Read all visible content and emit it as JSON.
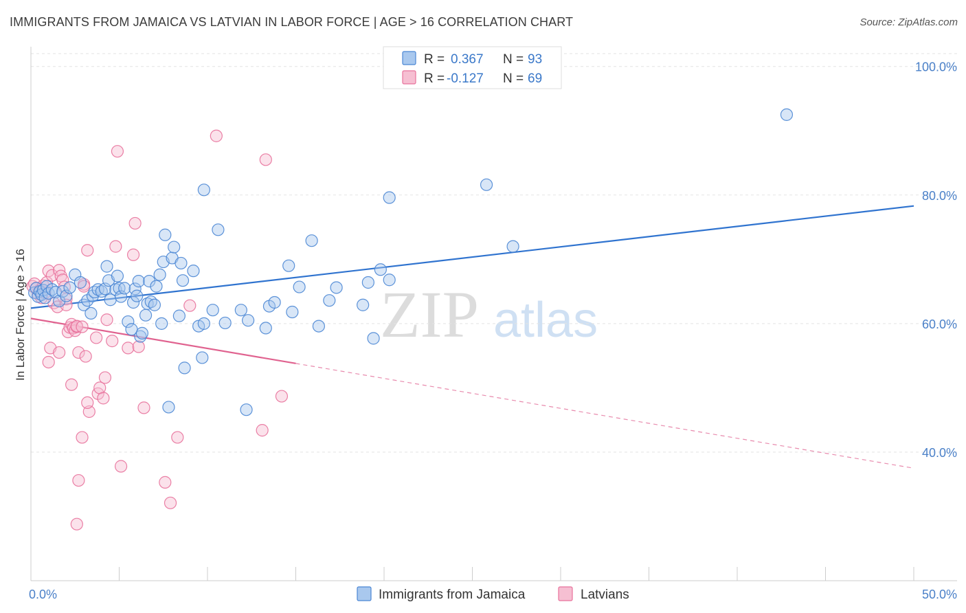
{
  "header": {
    "title": "IMMIGRANTS FROM JAMAICA VS LATVIAN IN LABOR FORCE | AGE > 16 CORRELATION CHART",
    "source": "Source: ZipAtlas.com"
  },
  "watermark": {
    "zip": "ZIP",
    "atlas": "atlas"
  },
  "colors": {
    "blue": "#4a86d4",
    "blue_fill": "#a9c8ee",
    "pink": "#e8719b",
    "pink_fill": "#f6bfd2",
    "grid": "#e3e3e3",
    "tick_label": "#4a80c8"
  },
  "legend_top": {
    "rows": [
      {
        "r_label": "R =",
        "r_value": "0.367",
        "n_label": "N =",
        "n_value": "93"
      },
      {
        "r_label": "R =",
        "r_value": "-0.127",
        "n_label": "N =",
        "n_value": "69"
      }
    ]
  },
  "chart_data": {
    "type": "scatter",
    "title": "IMMIGRANTS FROM JAMAICA VS LATVIAN IN LABOR FORCE | AGE > 16 CORRELATION CHART",
    "xlabel": "",
    "ylabel": "In Labor Force | Age > 16",
    "xlim": [
      0,
      50
    ],
    "ylim": [
      20,
      102
    ],
    "x_tick_labels": [
      "0.0%",
      "50.0%"
    ],
    "y_ticks": [
      40,
      60,
      80,
      100
    ],
    "y_tick_labels": [
      "40.0%",
      "60.0%",
      "80.0%",
      "100.0%"
    ],
    "grid": true,
    "legend_position": "bottom-center",
    "series": [
      {
        "name": "Immigrants from Jamaica",
        "color": "#4a86d4",
        "R": 0.367,
        "N": 93,
        "trend": {
          "x": [
            0,
            50
          ],
          "y": [
            62.4,
            78.3
          ],
          "style": "solid"
        },
        "points": [
          [
            0.2,
            64.8
          ],
          [
            0.3,
            65.5
          ],
          [
            0.4,
            64.2
          ],
          [
            0.5,
            65.0
          ],
          [
            0.6,
            64.5
          ],
          [
            0.7,
            65.2
          ],
          [
            0.8,
            64.0
          ],
          [
            0.9,
            65.8
          ],
          [
            1.0,
            64.7
          ],
          [
            1.2,
            65.3
          ],
          [
            1.4,
            64.9
          ],
          [
            1.6,
            63.5
          ],
          [
            1.8,
            65.0
          ],
          [
            2.0,
            64.3
          ],
          [
            2.2,
            65.6
          ],
          [
            2.5,
            67.6
          ],
          [
            2.8,
            66.4
          ],
          [
            3.0,
            62.9
          ],
          [
            3.2,
            63.6
          ],
          [
            3.4,
            61.6
          ],
          [
            3.5,
            64.3
          ],
          [
            3.6,
            64.9
          ],
          [
            3.8,
            65.3
          ],
          [
            4.0,
            65.0
          ],
          [
            4.2,
            65.4
          ],
          [
            4.3,
            68.9
          ],
          [
            4.4,
            66.7
          ],
          [
            4.5,
            63.7
          ],
          [
            4.8,
            65.3
          ],
          [
            4.9,
            67.4
          ],
          [
            5.0,
            65.5
          ],
          [
            5.1,
            64.2
          ],
          [
            5.3,
            65.5
          ],
          [
            5.5,
            60.3
          ],
          [
            5.7,
            59.1
          ],
          [
            5.8,
            63.3
          ],
          [
            5.9,
            65.4
          ],
          [
            6.0,
            64.3
          ],
          [
            6.1,
            66.6
          ],
          [
            6.2,
            58.0
          ],
          [
            6.3,
            58.5
          ],
          [
            6.5,
            61.3
          ],
          [
            6.6,
            63.1
          ],
          [
            6.7,
            66.6
          ],
          [
            6.8,
            63.4
          ],
          [
            7.0,
            62.9
          ],
          [
            7.1,
            65.8
          ],
          [
            7.3,
            67.6
          ],
          [
            7.4,
            60.0
          ],
          [
            7.5,
            69.6
          ],
          [
            7.6,
            73.8
          ],
          [
            7.8,
            47.0
          ],
          [
            8.0,
            70.2
          ],
          [
            8.1,
            71.9
          ],
          [
            8.4,
            61.2
          ],
          [
            8.5,
            69.4
          ],
          [
            8.6,
            66.7
          ],
          [
            8.7,
            53.1
          ],
          [
            9.2,
            68.2
          ],
          [
            9.5,
            59.6
          ],
          [
            9.7,
            54.7
          ],
          [
            9.8,
            60.0
          ],
          [
            9.8,
            80.8
          ],
          [
            10.3,
            62.1
          ],
          [
            10.6,
            74.6
          ],
          [
            11.0,
            60.1
          ],
          [
            11.9,
            62.1
          ],
          [
            12.2,
            46.6
          ],
          [
            12.3,
            60.5
          ],
          [
            13.3,
            59.3
          ],
          [
            13.5,
            62.7
          ],
          [
            13.8,
            63.3
          ],
          [
            14.6,
            69.0
          ],
          [
            14.8,
            61.8
          ],
          [
            15.2,
            65.7
          ],
          [
            15.9,
            72.9
          ],
          [
            16.3,
            59.6
          ],
          [
            16.9,
            63.6
          ],
          [
            17.3,
            65.6
          ],
          [
            18.8,
            62.9
          ],
          [
            19.1,
            66.4
          ],
          [
            19.4,
            57.7
          ],
          [
            19.8,
            68.4
          ],
          [
            20.3,
            66.8
          ],
          [
            20.3,
            79.6
          ],
          [
            25.8,
            81.6
          ],
          [
            27.3,
            72.0
          ],
          [
            42.8,
            92.5
          ]
        ]
      },
      {
        "name": "Latvians",
        "color": "#e8719b",
        "R": -0.127,
        "N": 69,
        "trend": {
          "x": [
            0,
            15
          ],
          "y": [
            60.8,
            53.8
          ],
          "style": "solid"
        },
        "trend_extension": {
          "x": [
            15,
            50
          ],
          "y": [
            53.8,
            37.5
          ],
          "style": "dashed"
        },
        "points": [
          [
            0.1,
            65.8
          ],
          [
            0.2,
            66.2
          ],
          [
            0.3,
            65.5
          ],
          [
            0.4,
            64.6
          ],
          [
            0.5,
            65.2
          ],
          [
            0.6,
            64.0
          ],
          [
            0.7,
            65.9
          ],
          [
            0.8,
            64.8
          ],
          [
            0.9,
            66.4
          ],
          [
            1.0,
            54.0
          ],
          [
            1.0,
            68.2
          ],
          [
            1.1,
            56.2
          ],
          [
            1.2,
            67.5
          ],
          [
            1.3,
            63.2
          ],
          [
            1.5,
            62.6
          ],
          [
            1.6,
            55.5
          ],
          [
            1.6,
            68.3
          ],
          [
            1.7,
            67.4
          ],
          [
            1.8,
            66.8
          ],
          [
            1.9,
            65.7
          ],
          [
            2.0,
            63.8
          ],
          [
            2.0,
            62.9
          ],
          [
            2.1,
            58.7
          ],
          [
            2.2,
            59.4
          ],
          [
            2.3,
            59.9
          ],
          [
            2.3,
            50.5
          ],
          [
            2.4,
            59.3
          ],
          [
            2.5,
            58.9
          ],
          [
            2.6,
            59.5
          ],
          [
            2.6,
            28.8
          ],
          [
            2.6,
            59.6
          ],
          [
            2.7,
            55.5
          ],
          [
            2.7,
            35.6
          ],
          [
            2.9,
            59.5
          ],
          [
            2.9,
            42.3
          ],
          [
            3.0,
            66.1
          ],
          [
            3.0,
            65.8
          ],
          [
            3.1,
            54.9
          ],
          [
            3.2,
            71.4
          ],
          [
            3.3,
            46.3
          ],
          [
            3.2,
            47.7
          ],
          [
            3.7,
            57.8
          ],
          [
            3.8,
            49.1
          ],
          [
            3.9,
            50.0
          ],
          [
            4.1,
            48.4
          ],
          [
            4.2,
            51.6
          ],
          [
            4.3,
            60.6
          ],
          [
            4.6,
            57.3
          ],
          [
            4.8,
            72.0
          ],
          [
            4.9,
            86.8
          ],
          [
            5.1,
            37.8
          ],
          [
            5.5,
            56.2
          ],
          [
            5.8,
            70.7
          ],
          [
            5.9,
            75.6
          ],
          [
            6.1,
            56.4
          ],
          [
            6.4,
            46.9
          ],
          [
            7.6,
            35.3
          ],
          [
            7.9,
            32.1
          ],
          [
            8.3,
            42.3
          ],
          [
            9.0,
            62.8
          ],
          [
            10.5,
            89.2
          ],
          [
            13.1,
            43.4
          ],
          [
            13.3,
            85.5
          ],
          [
            14.2,
            48.7
          ]
        ]
      }
    ]
  },
  "legend_bottom": {
    "items": [
      {
        "label": "Immigrants from Jamaica"
      },
      {
        "label": "Latvians"
      }
    ]
  }
}
